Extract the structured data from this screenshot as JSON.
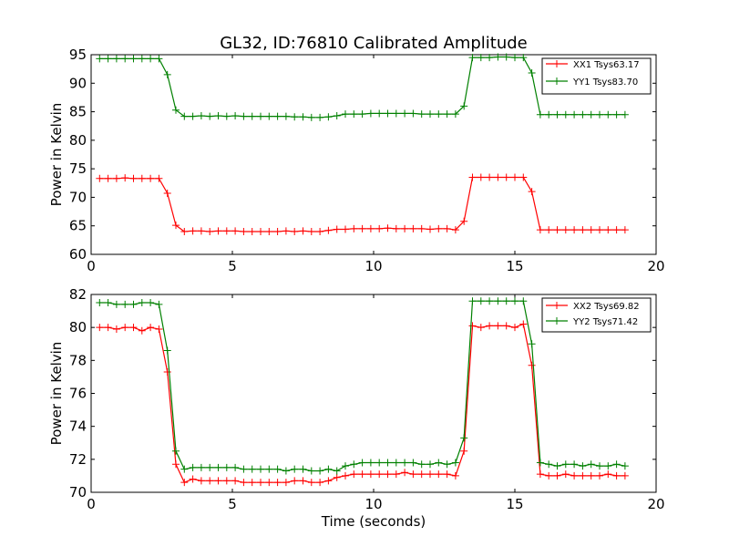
{
  "figure": {
    "title": "GL32, ID:76810 Calibrated Amplitude",
    "xlabel": "Time (seconds)"
  },
  "chart_data": [
    {
      "type": "line",
      "title": "GL32, ID:76810 Calibrated Amplitude",
      "xlabel": "",
      "ylabel": "Power in Kelvin",
      "xlim": [
        0,
        20
      ],
      "ylim": [
        60,
        95
      ],
      "xticks": [
        0,
        5,
        10,
        15,
        20
      ],
      "yticks": [
        60,
        65,
        70,
        75,
        80,
        85,
        90,
        95
      ],
      "grid": false,
      "legend": "top-right",
      "x": [
        0.3,
        0.6,
        0.9,
        1.2,
        1.5,
        1.8,
        2.1,
        2.4,
        2.7,
        3.0,
        3.3,
        3.6,
        3.9,
        4.2,
        4.5,
        4.8,
        5.1,
        5.4,
        5.7,
        6.0,
        6.3,
        6.6,
        6.9,
        7.2,
        7.5,
        7.8,
        8.1,
        8.4,
        8.7,
        9.0,
        9.3,
        9.6,
        9.9,
        10.2,
        10.5,
        10.8,
        11.1,
        11.4,
        11.7,
        12.0,
        12.3,
        12.6,
        12.9,
        13.2,
        13.5,
        13.8,
        14.1,
        14.4,
        14.7,
        15.0,
        15.3,
        15.6,
        15.9,
        16.2,
        16.5,
        16.8,
        17.1,
        17.4,
        17.7,
        18.0,
        18.3,
        18.6,
        18.9
      ],
      "series": [
        {
          "name": "XX1 Tsys63.17",
          "color": "#ff0000",
          "values": [
            73.3,
            73.3,
            73.3,
            73.4,
            73.3,
            73.3,
            73.3,
            73.3,
            70.7,
            65.1,
            64.0,
            64.1,
            64.1,
            64.0,
            64.1,
            64.1,
            64.1,
            64.0,
            64.0,
            64.0,
            64.0,
            64.0,
            64.1,
            64.0,
            64.1,
            64.0,
            64.0,
            64.2,
            64.4,
            64.4,
            64.5,
            64.5,
            64.5,
            64.5,
            64.6,
            64.5,
            64.5,
            64.5,
            64.5,
            64.4,
            64.5,
            64.5,
            64.3,
            65.8,
            73.5,
            73.5,
            73.5,
            73.5,
            73.5,
            73.5,
            73.5,
            71.0,
            64.3,
            64.3,
            64.3,
            64.3,
            64.3,
            64.3,
            64.3,
            64.3,
            64.3,
            64.3,
            64.3
          ]
        },
        {
          "name": "YY1 Tsys83.70",
          "color": "#008000",
          "values": [
            94.3,
            94.3,
            94.3,
            94.3,
            94.3,
            94.3,
            94.3,
            94.3,
            91.5,
            85.3,
            84.2,
            84.2,
            84.3,
            84.2,
            84.3,
            84.2,
            84.3,
            84.2,
            84.2,
            84.2,
            84.2,
            84.2,
            84.2,
            84.1,
            84.1,
            84.0,
            84.0,
            84.1,
            84.3,
            84.6,
            84.6,
            84.6,
            84.7,
            84.7,
            84.7,
            84.7,
            84.7,
            84.7,
            84.6,
            84.6,
            84.6,
            84.6,
            84.6,
            86.0,
            94.5,
            94.5,
            94.5,
            94.6,
            94.6,
            94.5,
            94.5,
            91.8,
            84.5,
            84.5,
            84.5,
            84.5,
            84.5,
            84.5,
            84.5,
            84.5,
            84.5,
            84.5,
            84.5
          ]
        }
      ]
    },
    {
      "type": "line",
      "title": "",
      "xlabel": "Time (seconds)",
      "ylabel": "Power in Kelvin",
      "xlim": [
        0,
        20
      ],
      "ylim": [
        70,
        82
      ],
      "xticks": [
        0,
        5,
        10,
        15,
        20
      ],
      "yticks": [
        70,
        72,
        74,
        76,
        78,
        80,
        82
      ],
      "grid": false,
      "legend": "top-right",
      "x": [
        0.3,
        0.6,
        0.9,
        1.2,
        1.5,
        1.8,
        2.1,
        2.4,
        2.7,
        3.0,
        3.3,
        3.6,
        3.9,
        4.2,
        4.5,
        4.8,
        5.1,
        5.4,
        5.7,
        6.0,
        6.3,
        6.6,
        6.9,
        7.2,
        7.5,
        7.8,
        8.1,
        8.4,
        8.7,
        9.0,
        9.3,
        9.6,
        9.9,
        10.2,
        10.5,
        10.8,
        11.1,
        11.4,
        11.7,
        12.0,
        12.3,
        12.6,
        12.9,
        13.2,
        13.5,
        13.8,
        14.1,
        14.4,
        14.7,
        15.0,
        15.3,
        15.6,
        15.9,
        16.2,
        16.5,
        16.8,
        17.1,
        17.4,
        17.7,
        18.0,
        18.3,
        18.6,
        18.9
      ],
      "series": [
        {
          "name": "XX2 Tsys69.82",
          "color": "#ff0000",
          "values": [
            80.0,
            80.0,
            79.9,
            80.0,
            80.0,
            79.8,
            80.0,
            79.9,
            77.3,
            71.7,
            70.6,
            70.8,
            70.7,
            70.7,
            70.7,
            70.7,
            70.7,
            70.6,
            70.6,
            70.6,
            70.6,
            70.6,
            70.6,
            70.7,
            70.7,
            70.6,
            70.6,
            70.7,
            70.9,
            71.0,
            71.1,
            71.1,
            71.1,
            71.1,
            71.1,
            71.1,
            71.2,
            71.1,
            71.1,
            71.1,
            71.1,
            71.1,
            71.0,
            72.5,
            80.1,
            80.0,
            80.1,
            80.1,
            80.1,
            80.0,
            80.2,
            77.7,
            71.1,
            71.0,
            71.0,
            71.1,
            71.0,
            71.0,
            71.0,
            71.0,
            71.1,
            71.0,
            71.0
          ]
        },
        {
          "name": "YY2 Tsys71.42",
          "color": "#008000",
          "values": [
            81.5,
            81.5,
            81.4,
            81.4,
            81.4,
            81.5,
            81.5,
            81.4,
            78.6,
            72.5,
            71.4,
            71.5,
            71.5,
            71.5,
            71.5,
            71.5,
            71.5,
            71.4,
            71.4,
            71.4,
            71.4,
            71.4,
            71.3,
            71.4,
            71.4,
            71.3,
            71.3,
            71.4,
            71.3,
            71.6,
            71.7,
            71.8,
            71.8,
            71.8,
            71.8,
            71.8,
            71.8,
            71.8,
            71.7,
            71.7,
            71.8,
            71.7,
            71.8,
            73.3,
            81.6,
            81.6,
            81.6,
            81.6,
            81.6,
            81.6,
            81.6,
            79.0,
            71.8,
            71.7,
            71.6,
            71.7,
            71.7,
            71.6,
            71.7,
            71.6,
            71.6,
            71.7,
            71.6
          ]
        }
      ]
    }
  ]
}
